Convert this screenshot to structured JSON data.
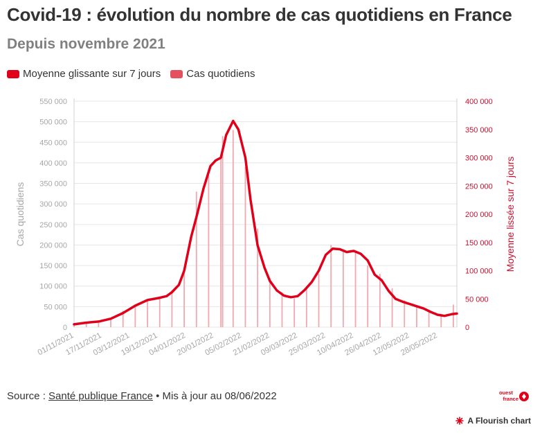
{
  "title": "Covid-19 : évolution du nombre de cas quotidiens en France",
  "subtitle": "Depuis novembre 2021",
  "legend": {
    "moving_avg": "Moyenne glissante sur 7 jours",
    "daily": "Cas quotidiens"
  },
  "footer": {
    "prefix": "Source : ",
    "source_link": "Santé publique France",
    "suffix": " • Mis à jour au 08/06/2022"
  },
  "branding": {
    "logo_top": "ouest",
    "logo_bottom": "france",
    "flourish": "A Flourish chart"
  },
  "colors": {
    "line": "#e0001a",
    "bars": "#f2a6ad",
    "legend_bar": "#e5505f",
    "left_axis": "#a6a6a6",
    "right_axis": "#c8102e"
  },
  "chart_data": {
    "type": "bar+line",
    "x_start": "2021-11-01",
    "x_end": "2022-06-08",
    "xlabel": "",
    "ylabel_left": "Cas quotidiens",
    "ylabel_right": "Moyenne lissée sur 7 jours",
    "ylim_left": [
      0,
      550000
    ],
    "ylim_right": [
      0,
      400000
    ],
    "yticks_left": [
      "0",
      "50 000",
      "100 000",
      "150 000",
      "200 000",
      "250 000",
      "300 000",
      "350 000",
      "400 000",
      "450 000",
      "500 000",
      "550 000"
    ],
    "yticks_right": [
      "0",
      "50 000",
      "100 000",
      "150 000",
      "200 000",
      "250 000",
      "300 000",
      "350 000",
      "400 000"
    ],
    "xticks": [
      "01/11/2021",
      "17/11/2021",
      "03/12/2021",
      "19/12/2021",
      "04/01/2022",
      "20/01/2022",
      "05/02/2022",
      "21/02/2022",
      "09/03/2022",
      "25/03/2022",
      "10/04/2022",
      "26/04/2022",
      "12/05/2022",
      "28/05/2022"
    ],
    "grid": true,
    "series": [
      {
        "name": "Moyenne glissante sur 7 jours",
        "type": "line",
        "axis": "right",
        "x": [
          "2021-11-01",
          "2021-11-08",
          "2021-11-15",
          "2021-11-22",
          "2021-11-29",
          "2021-12-06",
          "2021-12-13",
          "2021-12-20",
          "2021-12-24",
          "2021-12-27",
          "2021-12-31",
          "2022-01-03",
          "2022-01-07",
          "2022-01-10",
          "2022-01-14",
          "2022-01-18",
          "2022-01-21",
          "2022-01-24",
          "2022-01-27",
          "2022-01-31",
          "2022-02-03",
          "2022-02-07",
          "2022-02-10",
          "2022-02-14",
          "2022-02-18",
          "2022-02-21",
          "2022-02-25",
          "2022-03-01",
          "2022-03-05",
          "2022-03-09",
          "2022-03-13",
          "2022-03-17",
          "2022-03-21",
          "2022-03-25",
          "2022-03-29",
          "2022-04-02",
          "2022-04-06",
          "2022-04-10",
          "2022-04-14",
          "2022-04-18",
          "2022-04-22",
          "2022-04-26",
          "2022-04-30",
          "2022-05-04",
          "2022-05-08",
          "2022-05-12",
          "2022-05-16",
          "2022-05-20",
          "2022-05-24",
          "2022-05-28",
          "2022-06-01",
          "2022-06-05",
          "2022-06-08"
        ],
        "values": [
          5000,
          8000,
          10000,
          15000,
          25000,
          38000,
          48000,
          52000,
          55000,
          62000,
          75000,
          100000,
          160000,
          195000,
          245000,
          285000,
          295000,
          300000,
          340000,
          365000,
          350000,
          300000,
          225000,
          145000,
          105000,
          82000,
          65000,
          56000,
          53000,
          55000,
          66000,
          80000,
          100000,
          128000,
          139000,
          138000,
          133000,
          135000,
          130000,
          118000,
          93000,
          83000,
          64000,
          50000,
          45000,
          41000,
          37000,
          33000,
          27000,
          22000,
          20000,
          23000,
          24000
        ]
      },
      {
        "name": "Cas quotidiens",
        "type": "bar",
        "axis": "left",
        "x": [
          "2021-11-01",
          "2021-11-08",
          "2021-11-15",
          "2021-11-22",
          "2021-11-29",
          "2021-12-06",
          "2021-12-13",
          "2021-12-20",
          "2021-12-27",
          "2022-01-03",
          "2022-01-10",
          "2022-01-17",
          "2022-01-24",
          "2022-01-25",
          "2022-01-31",
          "2022-02-07",
          "2022-02-14",
          "2022-02-21",
          "2022-02-28",
          "2022-03-07",
          "2022-03-14",
          "2022-03-21",
          "2022-03-28",
          "2022-04-04",
          "2022-04-11",
          "2022-04-18",
          "2022-04-25",
          "2022-05-02",
          "2022-05-09",
          "2022-05-16",
          "2022-05-23",
          "2022-05-30",
          "2022-06-06"
        ],
        "values": [
          8000,
          12000,
          15000,
          22000,
          40000,
          55000,
          65000,
          75000,
          90000,
          140000,
          330000,
          370000,
          420000,
          465000,
          480000,
          390000,
          240000,
          120000,
          85000,
          70000,
          95000,
          130000,
          200000,
          190000,
          185000,
          150000,
          130000,
          95000,
          65000,
          50000,
          40000,
          30000,
          55000
        ]
      }
    ]
  }
}
